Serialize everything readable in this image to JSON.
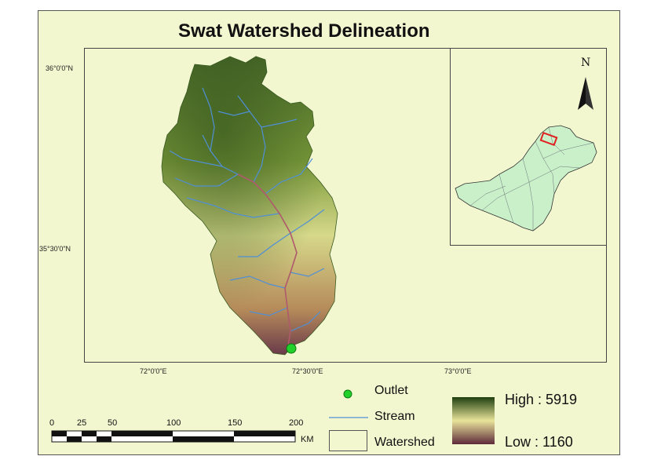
{
  "title": "Swat Watershed Delineation",
  "graticule": {
    "lat": [
      "36°0'0\"N",
      "35°30'0\"N"
    ],
    "lon": [
      "72°0'0\"E",
      "72°30'0\"E",
      "73°0'0\"E"
    ]
  },
  "north_arrow": "N",
  "legend": {
    "outlet": "Outlet",
    "stream": "Stream",
    "watershed": "Watershed",
    "high": "High : 5919",
    "low": "Low : 1160"
  },
  "scale_bar": {
    "ticks": [
      "0",
      "25",
      "50",
      "100",
      "150",
      "200"
    ],
    "unit": "KM"
  },
  "colors": {
    "background": "#f2f7cf",
    "stream": "#4f8fd6",
    "outlet": "#22d02a",
    "high": "#1f3f0f",
    "mid": "#e8e39a",
    "low": "#5e2a3a",
    "inset_fill": "#c9f0c8",
    "inset_highlight": "#e02020"
  }
}
